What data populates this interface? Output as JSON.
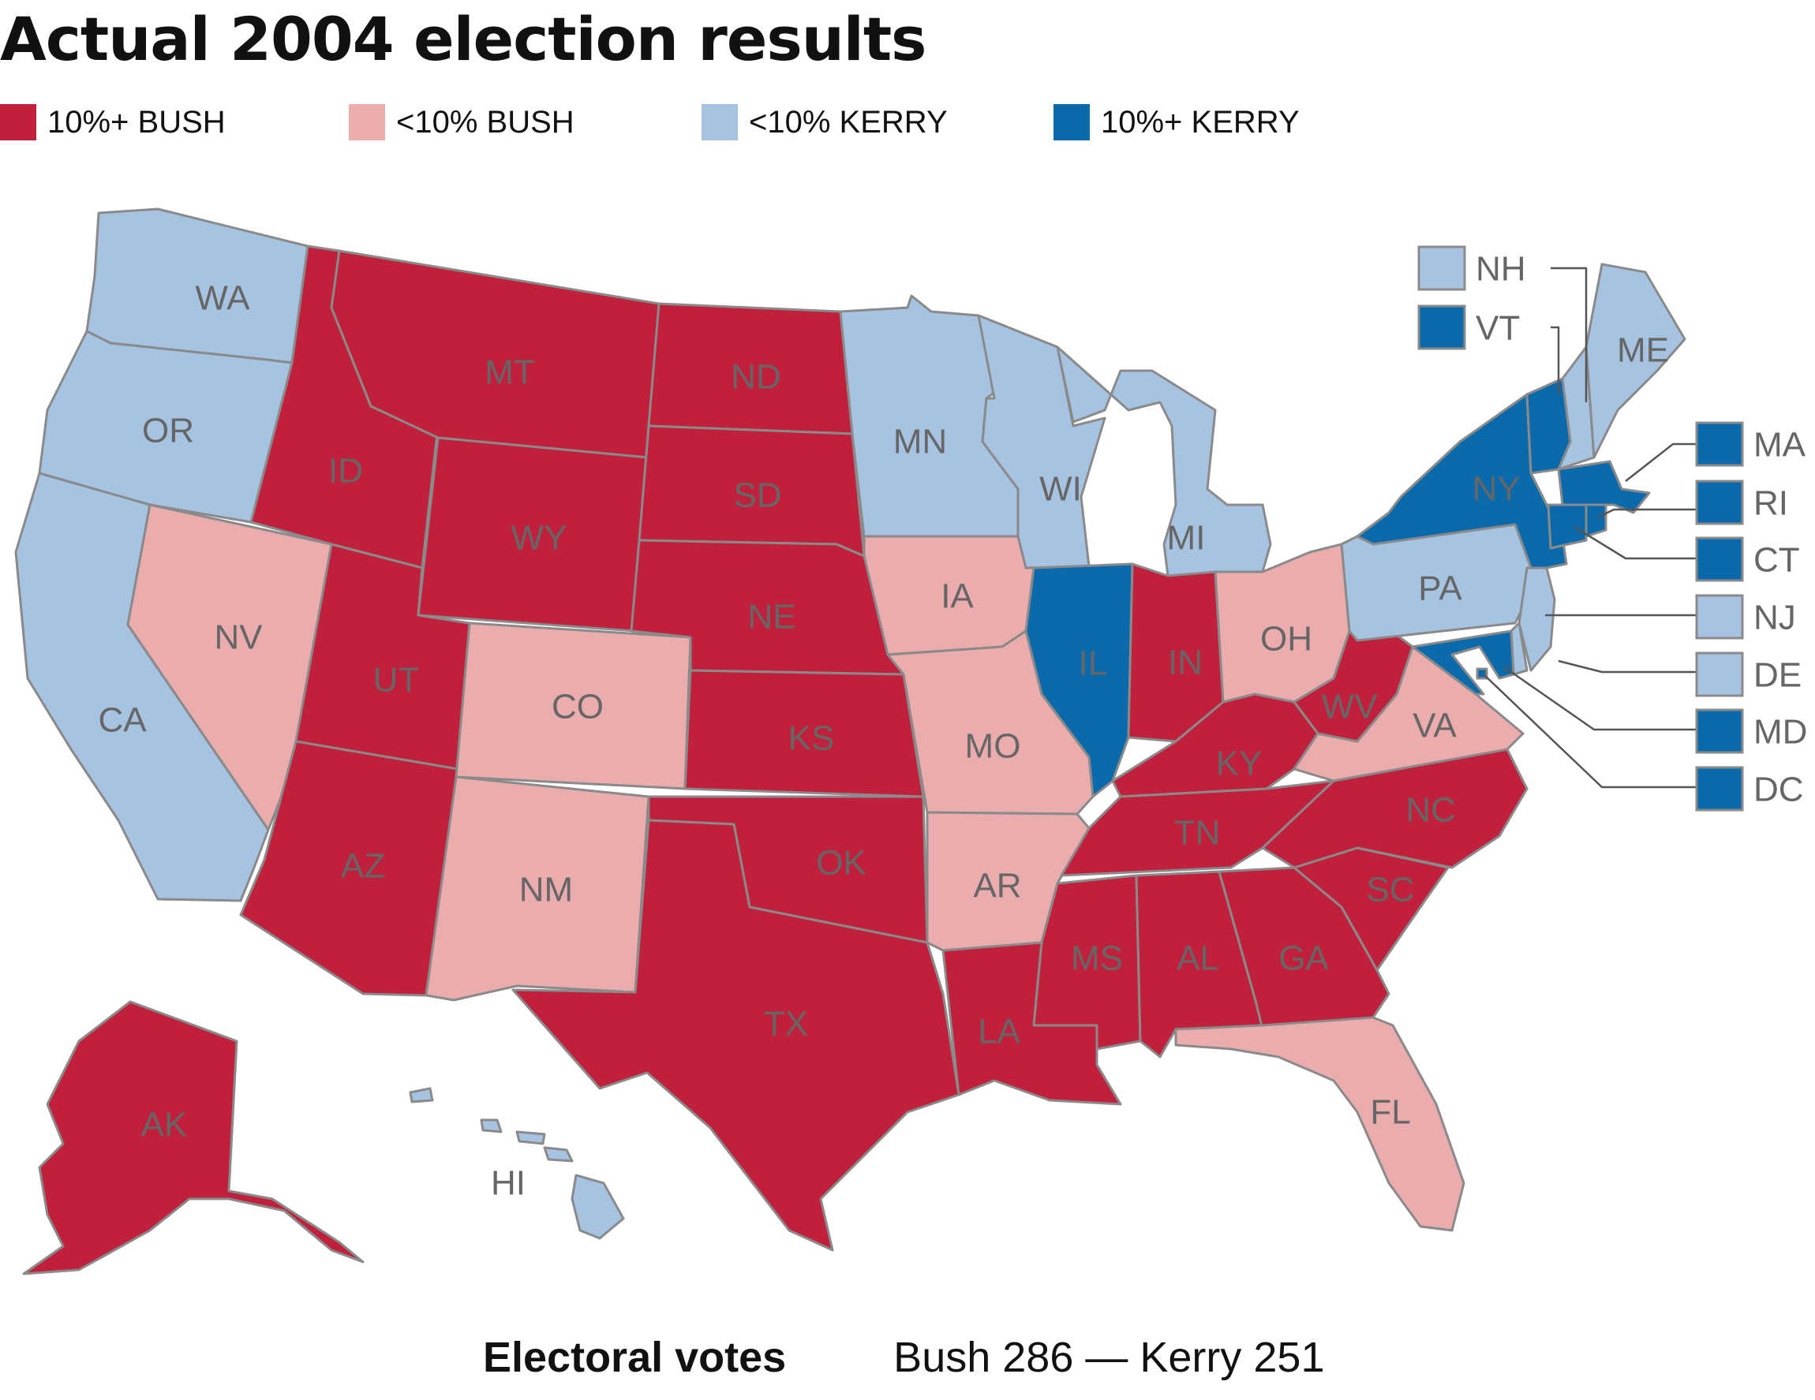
{
  "title": "Actual 2004 election results",
  "legend": [
    {
      "label": "10%+ BUSH",
      "color": "#c0203c",
      "category": "strong_bush"
    },
    {
      "label": "<10% BUSH",
      "color": "#ebacae",
      "category": "lean_bush"
    },
    {
      "label": "<10% KERRY",
      "color": "#a6c3e2",
      "category": "lean_kerry"
    },
    {
      "label": "10%+ KERRY",
      "color": "#0a6aab",
      "category": "strong_kerry"
    }
  ],
  "states": {
    "WA": "lean_kerry",
    "OR": "lean_kerry",
    "CA": "lean_kerry",
    "NV": "lean_bush",
    "ID": "strong_bush",
    "MT": "strong_bush",
    "WY": "strong_bush",
    "UT": "strong_bush",
    "AZ": "strong_bush",
    "CO": "lean_bush",
    "NM": "lean_bush",
    "ND": "strong_bush",
    "SD": "strong_bush",
    "NE": "strong_bush",
    "KS": "strong_bush",
    "OK": "strong_bush",
    "TX": "strong_bush",
    "MN": "lean_kerry",
    "IA": "lean_bush",
    "MO": "lean_bush",
    "AR": "lean_bush",
    "LA": "strong_bush",
    "WI": "lean_kerry",
    "IL": "strong_kerry",
    "MI": "lean_kerry",
    "IN": "strong_bush",
    "OH": "lean_bush",
    "KY": "strong_bush",
    "TN": "strong_bush",
    "MS": "strong_bush",
    "AL": "strong_bush",
    "GA": "strong_bush",
    "FL": "lean_bush",
    "SC": "strong_bush",
    "NC": "strong_bush",
    "VA": "lean_bush",
    "WV": "strong_bush",
    "PA": "lean_kerry",
    "NY": "strong_kerry",
    "VT": "strong_kerry",
    "NH": "lean_kerry",
    "ME": "lean_kerry",
    "MA": "strong_kerry",
    "RI": "strong_kerry",
    "CT": "strong_kerry",
    "NJ": "lean_kerry",
    "DE": "lean_kerry",
    "MD": "strong_kerry",
    "DC": "strong_kerry",
    "AK": "strong_bush",
    "HI": "lean_kerry"
  },
  "callouts": [
    "NH",
    "VT",
    "MA",
    "RI",
    "CT",
    "NJ",
    "DE",
    "MD",
    "DC"
  ],
  "footer": {
    "label": "Electoral votes",
    "result": "Bush 286 — Kerry 251"
  }
}
